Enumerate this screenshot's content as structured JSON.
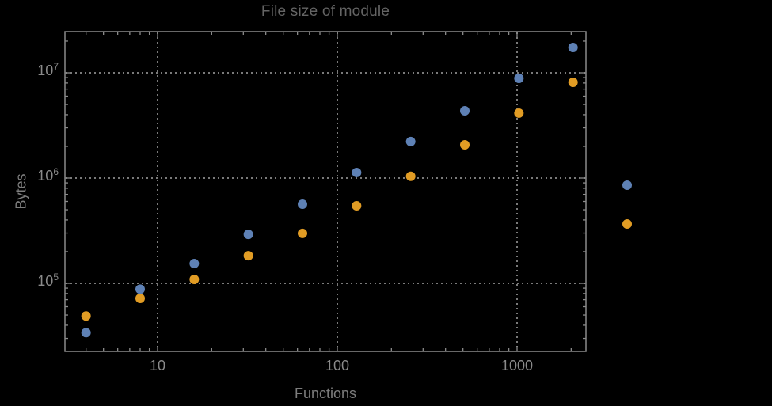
{
  "chart_data": {
    "type": "scatter",
    "title": "File size of module",
    "xlabel": "Functions",
    "ylabel": "Bytes",
    "xscale": "log",
    "yscale": "log",
    "grid": true,
    "legend": false,
    "marker_diameter_px": 12,
    "x": [
      4,
      8,
      16,
      32,
      64,
      128,
      256,
      512,
      1024,
      2048,
      4096
    ],
    "series": [
      {
        "name": "blue",
        "color": "#5e81b5",
        "values": [
          34000,
          88000,
          154000,
          292000,
          565000,
          1130000,
          2220000,
          4360000,
          8860000,
          17400000,
          856000
        ]
      },
      {
        "name": "orange",
        "color": "#e19c24",
        "values": [
          49000,
          72000,
          109000,
          183000,
          298000,
          546000,
          1040000,
          2070000,
          4140000,
          8130000,
          366000
        ]
      }
    ],
    "x_ticks": {
      "values": [
        10,
        100,
        1000
      ],
      "labels": [
        "10",
        "100",
        "1000"
      ]
    },
    "y_ticks": {
      "values": [
        100000,
        1000000,
        10000000
      ],
      "labels": [
        {
          "base": "10",
          "exp": "5"
        },
        {
          "base": "10",
          "exp": "6"
        },
        {
          "base": "10",
          "exp": "7"
        }
      ]
    },
    "xlim": [
      3.05,
      2400
    ],
    "ylim": [
      22500,
      24600000
    ],
    "note": "last data pair (x=4096) is drawn outside the right frame edge (no plot-range clipping)"
  },
  "colors": {
    "background": "#000000",
    "frame": "#8a8a8a",
    "grid": "#7a7a7a",
    "title_text": "#646464",
    "axis_label_text": "#7d7d7d",
    "tick_text": "#8a8a8a",
    "series_blue": "#5e81b5",
    "series_orange": "#e19c24"
  }
}
